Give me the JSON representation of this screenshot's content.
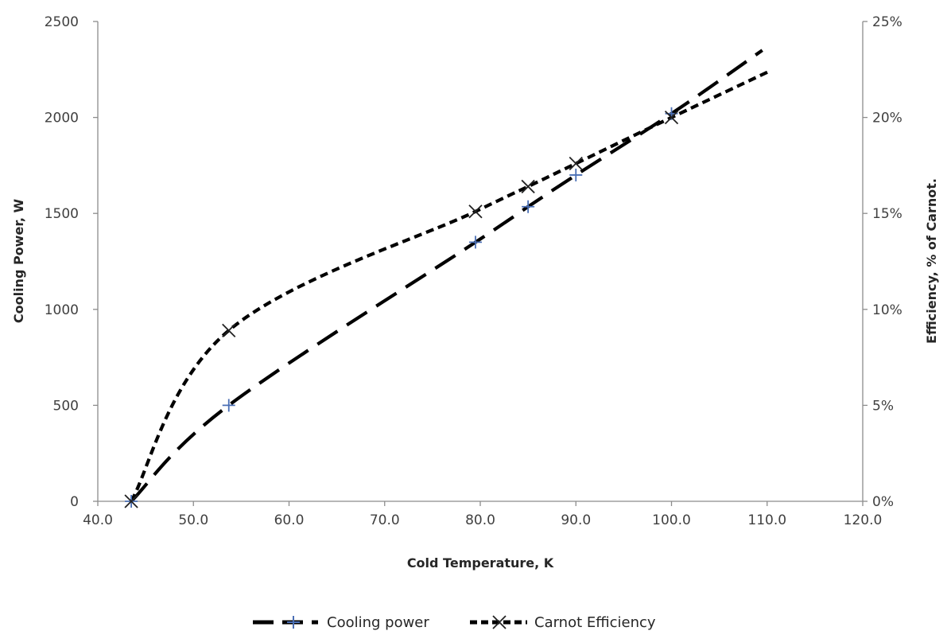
{
  "chart_data": {
    "type": "line",
    "xlabel": "Cold Temperature, K",
    "ylabel": "Cooling Power, W",
    "y2label": "Efficiency,  % of Carnot.",
    "xlim": [
      40,
      120
    ],
    "ylim": [
      0,
      2500
    ],
    "y2lim": [
      0,
      25
    ],
    "x_ticks": [
      "40.0",
      "50.0",
      "60.0",
      "70.0",
      "80.0",
      "90.0",
      "100.0",
      "110.0",
      "120.0"
    ],
    "y_ticks": [
      "0",
      "500",
      "1000",
      "1500",
      "2000",
      "2500"
    ],
    "y2_ticks": [
      "0%",
      "5%",
      "10%",
      "15%",
      "20%",
      "25%"
    ],
    "grid": false,
    "legend_position": "bottom",
    "series": [
      {
        "name": "Cooling power",
        "axis": "left",
        "marker": "plus",
        "marker_color": "#4a6fb5",
        "x": [
          43.5,
          53.7,
          79.5,
          85.0,
          90.0,
          100.0
        ],
        "y": [
          0,
          500,
          1350,
          1535,
          1700,
          2020
        ],
        "trend_extends_to": [
          109.5,
          2350
        ]
      },
      {
        "name": "Carnot Efficiency",
        "axis": "right",
        "marker": "x",
        "marker_color": "#222222",
        "x": [
          43.5,
          53.7,
          79.5,
          85.0,
          90.0,
          100.0
        ],
        "y": [
          0,
          8.9,
          15.1,
          16.4,
          17.6,
          20.0
        ],
        "trend_extends_to": [
          110.2,
          22.4
        ]
      }
    ]
  }
}
